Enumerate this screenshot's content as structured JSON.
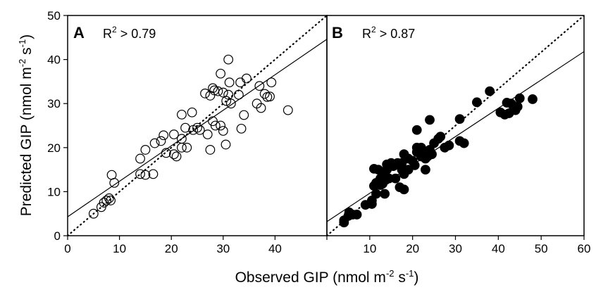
{
  "chart_data": [
    {
      "type": "scatter",
      "panel_label": "A",
      "annotation": {
        "base": "R",
        "sup": "2",
        "rest": " > 0.79"
      },
      "xlim": [
        0,
        50
      ],
      "ylim": [
        0,
        50
      ],
      "xticks": [
        0,
        10,
        20,
        30,
        40
      ],
      "yticks": [
        0,
        10,
        20,
        30,
        40,
        50
      ],
      "marker": "open-circle",
      "reference_line": {
        "style": "dotted",
        "x": [
          0,
          50
        ],
        "y": [
          0,
          50
        ]
      },
      "fit_line": {
        "style": "solid",
        "x": [
          0,
          50
        ],
        "y": [
          4.3,
          44.6
        ]
      },
      "points": [
        [
          5.0,
          5.0
        ],
        [
          6.5,
          6.5
        ],
        [
          7.0,
          7.5
        ],
        [
          7.5,
          8.0
        ],
        [
          8.0,
          8.5
        ],
        [
          8.3,
          8.0
        ],
        [
          8.5,
          13.8
        ],
        [
          9.0,
          12.0
        ],
        [
          14.0,
          17.5
        ],
        [
          14.0,
          14.0
        ],
        [
          15.0,
          19.5
        ],
        [
          15.0,
          13.8
        ],
        [
          16.5,
          14.0
        ],
        [
          16.8,
          21.0
        ],
        [
          18.0,
          21.5
        ],
        [
          18.5,
          22.8
        ],
        [
          19.0,
          18.8
        ],
        [
          20.5,
          18.5
        ],
        [
          20.5,
          23.0
        ],
        [
          21.0,
          18.0
        ],
        [
          22.0,
          27.5
        ],
        [
          22.0,
          22.0
        ],
        [
          22.0,
          20.0
        ],
        [
          22.7,
          24.5
        ],
        [
          23.0,
          20.0
        ],
        [
          24.0,
          28.0
        ],
        [
          24.2,
          24.0
        ],
        [
          25.0,
          24.5
        ],
        [
          25.5,
          24.0
        ],
        [
          26.5,
          32.3
        ],
        [
          27.0,
          23.0
        ],
        [
          27.5,
          19.5
        ],
        [
          27.5,
          31.8
        ],
        [
          28.0,
          26.0
        ],
        [
          28.0,
          33.5
        ],
        [
          28.3,
          33.0
        ],
        [
          28.5,
          25.0
        ],
        [
          29.0,
          32.8
        ],
        [
          29.5,
          25.0
        ],
        [
          29.5,
          36.8
        ],
        [
          30.0,
          23.8
        ],
        [
          30.0,
          32.5
        ],
        [
          30.5,
          20.7
        ],
        [
          30.6,
          30.6
        ],
        [
          31.0,
          40.0
        ],
        [
          31.0,
          32.0
        ],
        [
          31.2,
          34.8
        ],
        [
          31.5,
          30.0
        ],
        [
          33.0,
          32.0
        ],
        [
          33.3,
          34.8
        ],
        [
          33.5,
          24.3
        ],
        [
          34.0,
          27.4
        ],
        [
          34.5,
          35.7
        ],
        [
          36.5,
          30.0
        ],
        [
          37.0,
          34.0
        ],
        [
          37.3,
          29.0
        ],
        [
          38.0,
          32.2
        ],
        [
          38.5,
          31.5
        ],
        [
          39.0,
          31.6
        ],
        [
          39.3,
          34.8
        ],
        [
          42.5,
          28.5
        ]
      ]
    },
    {
      "type": "scatter",
      "panel_label": "B",
      "annotation": {
        "base": "R",
        "sup": "2",
        "rest": " > 0.87"
      },
      "xlim": [
        0,
        60
      ],
      "ylim": [
        0,
        50
      ],
      "xticks": [
        0,
        10,
        20,
        30,
        40,
        50,
        60
      ],
      "marker": "filled-circle",
      "reference_line": {
        "style": "dotted",
        "x": [
          0,
          60
        ],
        "y": [
          0,
          50
        ]
      },
      "fit_line": {
        "style": "solid",
        "x": [
          0,
          60
        ],
        "y": [
          3.2,
          41.8
        ]
      },
      "points": [
        [
          4.0,
          3.5
        ],
        [
          4.0,
          3.0
        ],
        [
          5.0,
          4.5
        ],
        [
          5.2,
          5.3
        ],
        [
          6.0,
          4.8
        ],
        [
          7.0,
          4.8
        ],
        [
          9.0,
          7.0
        ],
        [
          10.5,
          7.2
        ],
        [
          10.5,
          8.0
        ],
        [
          11.0,
          11.3
        ],
        [
          11.0,
          15.2
        ],
        [
          11.5,
          9.5
        ],
        [
          11.5,
          12.0
        ],
        [
          12.0,
          15.0
        ],
        [
          12.5,
          13.0
        ],
        [
          12.5,
          11.5
        ],
        [
          13.0,
          11.8
        ],
        [
          13.5,
          9.5
        ],
        [
          13.5,
          14.0
        ],
        [
          14.0,
          15.0
        ],
        [
          14.0,
          16.2
        ],
        [
          14.5,
          13.0
        ],
        [
          15.0,
          16.5
        ],
        [
          15.5,
          15.8
        ],
        [
          16.0,
          13.0
        ],
        [
          16.5,
          16.5
        ],
        [
          17.0,
          11.0
        ],
        [
          17.5,
          15.0
        ],
        [
          17.5,
          16.5
        ],
        [
          18.0,
          10.5
        ],
        [
          18.0,
          14.0
        ],
        [
          18.0,
          18.5
        ],
        [
          19.0,
          15.0
        ],
        [
          19.0,
          17.5
        ],
        [
          20.0,
          17.0
        ],
        [
          20.5,
          16.0
        ],
        [
          21.0,
          19.0
        ],
        [
          21.0,
          24.0
        ],
        [
          21.0,
          20.0
        ],
        [
          22.0,
          20.0
        ],
        [
          22.0,
          18.0
        ],
        [
          22.5,
          19.3
        ],
        [
          23.0,
          17.5
        ],
        [
          23.0,
          15.0
        ],
        [
          23.5,
          18.0
        ],
        [
          24.0,
          19.5
        ],
        [
          24.0,
          26.3
        ],
        [
          24.5,
          18.5
        ],
        [
          25.0,
          21.0
        ],
        [
          26.0,
          22.0
        ],
        [
          26.5,
          22.5
        ],
        [
          27.5,
          20.0
        ],
        [
          28.5,
          20.5
        ],
        [
          31.0,
          26.5
        ],
        [
          31.0,
          21.5
        ],
        [
          32.0,
          21.0
        ],
        [
          35.0,
          30.3
        ],
        [
          38.0,
          32.8
        ],
        [
          40.5,
          28.0
        ],
        [
          41.5,
          27.5
        ],
        [
          42.0,
          30.2
        ],
        [
          42.5,
          27.8
        ],
        [
          43.0,
          30.0
        ],
        [
          43.5,
          29.5
        ],
        [
          44.0,
          28.5
        ],
        [
          44.5,
          29.3
        ],
        [
          45.0,
          31.2
        ],
        [
          48.0,
          31.0
        ]
      ]
    }
  ],
  "shared": {
    "xlabel": {
      "text": "Observed GIP (nmol m",
      "sup1": "-2",
      "mid": " s",
      "sup2": "-1",
      "end": ")"
    },
    "ylabel": {
      "text": "Predicted GIP (nmol m",
      "sup1": "-2",
      "mid": " s",
      "sup2": "-1",
      "end": ")"
    }
  }
}
